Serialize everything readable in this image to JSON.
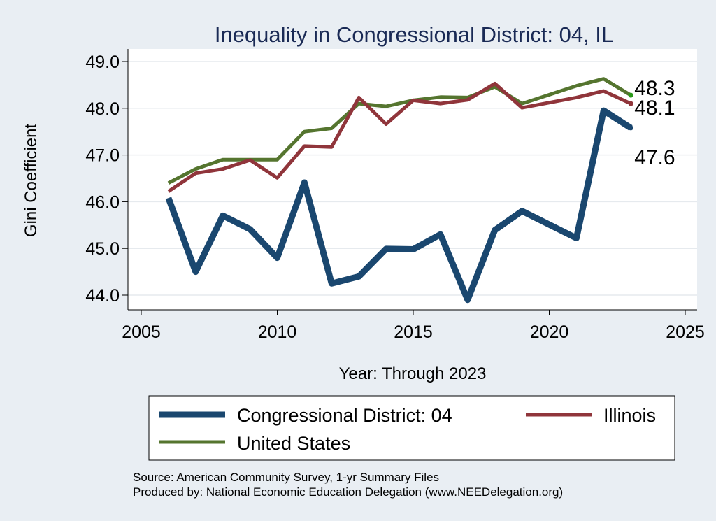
{
  "chart_data": {
    "type": "line",
    "title": "Inequality in Congressional District:  04, IL",
    "xlabel": "Year: Through 2023",
    "ylabel": "Gini Coefficient",
    "xlim": [
      2005,
      2025
    ],
    "ylim": [
      43.8,
      49.25
    ],
    "x_ticks": [
      2005,
      2010,
      2015,
      2020,
      2025
    ],
    "x_tick_labels": [
      "2005",
      "2010",
      "2015",
      "2020",
      "2025"
    ],
    "y_ticks": [
      44,
      45,
      46,
      47,
      48,
      49
    ],
    "y_tick_labels": [
      "44.0",
      "45.0",
      "46.0",
      "47.0",
      "48.0",
      "49.0"
    ],
    "grid": true,
    "series": [
      {
        "key": "district",
        "name": "Congressional District:  04",
        "color": "#1a476f",
        "x": [
          2006,
          2007,
          2008,
          2009,
          2010,
          2011,
          2012,
          2013,
          2014,
          2015,
          2016,
          2017,
          2018,
          2019,
          2021,
          2022,
          2023
        ],
        "values": [
          46.08,
          44.5,
          45.7,
          45.41,
          44.8,
          46.41,
          44.25,
          44.4,
          44.99,
          44.98,
          45.3,
          43.9,
          45.39,
          45.8,
          45.22,
          47.95,
          47.58
        ],
        "end_label": "47.6"
      },
      {
        "key": "state",
        "name": "Illinois",
        "color": "#90353b",
        "x": [
          2006,
          2007,
          2008,
          2009,
          2010,
          2011,
          2012,
          2013,
          2014,
          2015,
          2016,
          2017,
          2018,
          2019,
          2021,
          2022,
          2023
        ],
        "values": [
          46.22,
          46.61,
          46.7,
          46.89,
          46.51,
          47.19,
          47.17,
          48.23,
          47.66,
          48.17,
          48.1,
          48.18,
          48.53,
          48.01,
          48.23,
          48.37,
          48.1
        ],
        "end_label": "48.1"
      },
      {
        "key": "us",
        "name": "United States",
        "color": "#55752f",
        "x": [
          2006,
          2007,
          2008,
          2009,
          2010,
          2011,
          2012,
          2013,
          2014,
          2015,
          2016,
          2017,
          2018,
          2019,
          2021,
          2022,
          2023
        ],
        "values": [
          46.4,
          46.7,
          46.9,
          46.9,
          46.9,
          47.5,
          47.57,
          48.1,
          48.04,
          48.17,
          48.24,
          48.23,
          48.46,
          48.1,
          48.48,
          48.63,
          48.28
        ],
        "end_label": "48.3"
      }
    ],
    "legend": {
      "position": "bottom",
      "entries": [
        "Congressional District:  04",
        "Illinois",
        "United States"
      ]
    },
    "annotations": {
      "source_line1": "Source: American Community Survey, 1-yr Summary Files",
      "source_line2": "Produced by: National Economic Education Delegation (www.NEEDelegation.org)"
    }
  }
}
